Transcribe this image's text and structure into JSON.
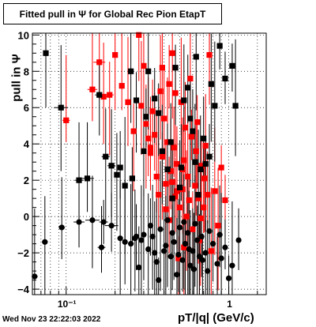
{
  "title": "Fitted pull in  Ψ  for Global Rec Pion EtapT",
  "timestamp": "Wed Nov 23 22:22:03 2022",
  "chart_data": {
    "type": "scatter",
    "xlabel": "pT/|q| (GeV/c)",
    "ylabel": "pull in  Ψ",
    "xscale": "log",
    "xlim": [
      0.062,
      1.7
    ],
    "ylim": [
      -4.3,
      10.1
    ],
    "ytick_labels": [
      "−4",
      "−2",
      "0",
      "2",
      "4",
      "6",
      "8",
      "10"
    ],
    "xtick_labels": [
      "10⁻¹",
      "1"
    ],
    "grid": true,
    "series": [
      {
        "color": "#ff0000",
        "marker": "square",
        "points": [
          [
            0.1,
            5.3
          ],
          [
            0.145,
            7.0
          ],
          [
            0.16,
            8.5
          ],
          [
            0.17,
            6.6
          ],
          [
            0.185,
            6.7
          ],
          [
            0.2,
            8.9
          ],
          [
            0.22,
            7.2
          ],
          [
            0.24,
            6.3
          ],
          [
            0.26,
            4.7
          ],
          [
            0.28,
            10.0
          ],
          [
            0.3,
            8.3
          ],
          [
            0.29,
            6.1
          ],
          [
            0.31,
            5.1
          ],
          [
            0.32,
            4.3
          ],
          [
            0.33,
            3.5
          ],
          [
            0.35,
            4.5
          ],
          [
            0.36,
            2.2
          ],
          [
            0.38,
            6.9
          ],
          [
            0.39,
            3.3
          ],
          [
            0.4,
            5.4
          ],
          [
            0.41,
            1.8
          ],
          [
            0.42,
            4.1
          ],
          [
            0.43,
            7.3
          ],
          [
            0.44,
            2.5
          ],
          [
            0.45,
            9.0
          ],
          [
            0.46,
            3.8
          ],
          [
            0.47,
            1.1
          ],
          [
            0.48,
            2.9
          ],
          [
            0.5,
            0.5
          ],
          [
            0.51,
            6.3
          ],
          [
            0.52,
            1.5
          ],
          [
            0.53,
            3.1
          ],
          [
            0.54,
            4.9
          ],
          [
            0.55,
            0.0
          ],
          [
            0.56,
            2.2
          ],
          [
            0.58,
            7.6
          ],
          [
            0.6,
            -0.7
          ],
          [
            0.62,
            1.7
          ],
          [
            0.64,
            5.2
          ],
          [
            0.66,
            -1.3
          ],
          [
            0.68,
            2.8
          ],
          [
            0.7,
            0.5
          ],
          [
            0.72,
            3.9
          ],
          [
            0.74,
            1.2
          ],
          [
            0.76,
            8.9
          ],
          [
            0.78,
            -1.9
          ],
          [
            0.82,
            1.4
          ],
          [
            0.86,
            -0.5
          ],
          [
            0.9,
            2.7
          ],
          [
            0.95,
            0.9
          ],
          [
            0.33,
            3.8
          ],
          [
            0.37,
            1.2
          ],
          [
            0.39,
            8.2
          ],
          [
            0.43,
            -0.2
          ],
          [
            0.45,
            1.9
          ],
          [
            0.47,
            6.8
          ],
          [
            0.49,
            -2.3
          ],
          [
            0.52,
            2.6
          ],
          [
            0.57,
            0.9
          ],
          [
            0.63,
            3.6
          ],
          [
            0.67,
            -0.1
          ],
          [
            0.71,
            2.1
          ],
          [
            0.34,
            5.8
          ],
          [
            0.41,
            0.4
          ],
          [
            0.48,
            1.4
          ],
          [
            0.53,
            -1.7
          ],
          [
            0.59,
            4.4
          ],
          [
            0.65,
            1.0
          ]
        ]
      },
      {
        "color": "#000000",
        "marker": "square",
        "points": [
          [
            0.075,
            9.0
          ],
          [
            0.093,
            6.0
          ],
          [
            0.12,
            2.0
          ],
          [
            0.135,
            2.1
          ],
          [
            0.16,
            6.7
          ],
          [
            0.175,
            3.3
          ],
          [
            0.19,
            2.8
          ],
          [
            0.205,
            2.3
          ],
          [
            0.215,
            2.7
          ],
          [
            0.23,
            1.7
          ],
          [
            0.25,
            8.0
          ],
          [
            0.255,
            2.1
          ],
          [
            0.27,
            6.4
          ],
          [
            0.3,
            3.6
          ],
          [
            0.32,
            8.0
          ],
          [
            0.35,
            6.5
          ],
          [
            0.37,
            5.7
          ],
          [
            0.39,
            3.6
          ],
          [
            0.42,
            2.6
          ],
          [
            0.44,
            4.1
          ],
          [
            0.47,
            8.2
          ],
          [
            0.5,
            1.6
          ],
          [
            0.53,
            6.4
          ],
          [
            0.56,
            7.1
          ],
          [
            0.6,
            4.7
          ],
          [
            0.62,
            3.0
          ],
          [
            0.65,
            1.2
          ],
          [
            0.67,
            2.6
          ],
          [
            0.72,
            2.9
          ],
          [
            0.78,
            7.3
          ],
          [
            0.82,
            6.1
          ],
          [
            0.88,
            9.4
          ],
          [
            0.95,
            7.6
          ],
          [
            1.05,
            8.3
          ],
          [
            1.1,
            6.1
          ],
          [
            0.31,
            5.5
          ],
          [
            0.45,
            1.0
          ],
          [
            0.51,
            2.7
          ],
          [
            0.58,
            5.4
          ],
          [
            0.63,
            8.8
          ],
          [
            0.7,
            4.3
          ],
          [
            0.76,
            3.3
          ]
        ]
      },
      {
        "color": "#000000",
        "marker": "circle",
        "points": [
          [
            0.064,
            -3.3
          ],
          [
            0.074,
            -1.4
          ],
          [
            0.094,
            -0.6
          ],
          [
            0.12,
            -0.3
          ],
          [
            0.145,
            -0.2
          ],
          [
            0.165,
            -1.7
          ],
          [
            0.17,
            -0.3
          ],
          [
            0.19,
            -0.5
          ],
          [
            0.215,
            -1.2
          ],
          [
            0.23,
            -1.4
          ],
          [
            0.25,
            -1.5
          ],
          [
            0.265,
            -1.2
          ],
          [
            0.28,
            -2.8
          ],
          [
            0.3,
            -1.0
          ],
          [
            0.32,
            -1.8
          ],
          [
            0.34,
            -1.1
          ],
          [
            0.36,
            -2.5
          ],
          [
            0.38,
            -0.7
          ],
          [
            0.4,
            -1.9
          ],
          [
            0.42,
            -0.2
          ],
          [
            0.44,
            -2.2
          ],
          [
            0.46,
            -1.4
          ],
          [
            0.48,
            -3.2
          ],
          [
            0.5,
            -0.6
          ],
          [
            0.52,
            -2.4
          ],
          [
            0.54,
            -1.5
          ],
          [
            0.56,
            -0.9
          ],
          [
            0.58,
            -2.7
          ],
          [
            0.6,
            -1.9
          ],
          [
            0.62,
            -0.4
          ],
          [
            0.64,
            -1.3
          ],
          [
            0.66,
            -2.2
          ],
          [
            0.68,
            -1.1
          ],
          [
            0.72,
            -2.0
          ],
          [
            0.76,
            -0.8
          ],
          [
            0.8,
            -1.5
          ],
          [
            0.85,
            -2.6
          ],
          [
            0.9,
            -2.3
          ],
          [
            0.95,
            -1.7
          ],
          [
            1.0,
            -3.4
          ],
          [
            1.05,
            -2.7
          ],
          [
            1.15,
            -1.3
          ],
          [
            0.29,
            -1.3
          ],
          [
            0.33,
            -0.5
          ],
          [
            0.37,
            -3.5
          ],
          [
            0.41,
            -1.6
          ],
          [
            0.45,
            -0.9
          ],
          [
            0.49,
            -2.1
          ],
          [
            0.53,
            -0.3
          ],
          [
            0.57,
            -1.8
          ],
          [
            0.61,
            -2.9
          ],
          [
            0.69,
            -2.4
          ],
          [
            0.74,
            -3.0
          ],
          [
            0.88,
            -1.0
          ],
          [
            0.27,
            -1.1
          ],
          [
            0.35,
            -2.0
          ]
        ]
      }
    ]
  }
}
